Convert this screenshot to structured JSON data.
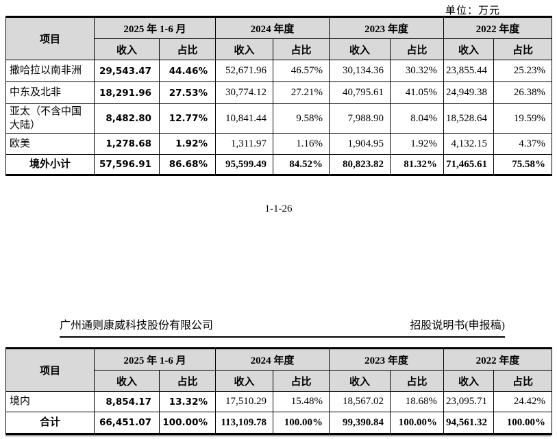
{
  "unit_label": "单位：万元",
  "page_number": "1-1-26",
  "page_header": {
    "company": "广州通则康威科技股份有限公司",
    "doc_title": "招股说明书(申报稿)"
  },
  "column_header": {
    "item": "项目",
    "periods": [
      "2025 年 1-6 月",
      "2024 年度",
      "2023 年度",
      "2022 年度"
    ],
    "sub_revenue": "收入",
    "sub_share": "占比"
  },
  "table_overseas": {
    "rows": [
      {
        "label": "撒哈拉以南非洲",
        "is_total": false,
        "values": [
          "29,543.47",
          "44.46%",
          "52,671.96",
          "46.57%",
          "30,134.36",
          "30.32%",
          "23,855.44",
          "25.23%"
        ]
      },
      {
        "label": "中东及北非",
        "is_total": false,
        "values": [
          "18,291.96",
          "27.53%",
          "30,774.12",
          "27.21%",
          "40,795.61",
          "41.05%",
          "24,949.38",
          "26.38%"
        ]
      },
      {
        "label": "亚太（不含中国大陆）",
        "is_total": false,
        "values": [
          "8,482.80",
          "12.77%",
          "10,841.44",
          "9.58%",
          "7,988.90",
          "8.04%",
          "18,528.64",
          "19.59%"
        ]
      },
      {
        "label": "欧美",
        "is_total": false,
        "values": [
          "1,278.68",
          "1.92%",
          "1,311.97",
          "1.16%",
          "1,904.95",
          "1.92%",
          "4,132.15",
          "4.37%"
        ]
      },
      {
        "label": "境外小计",
        "is_total": true,
        "values": [
          "57,596.91",
          "86.68%",
          "95,599.49",
          "84.52%",
          "80,823.82",
          "81.32%",
          "71,465.61",
          "75.58%"
        ]
      }
    ]
  },
  "table_domestic": {
    "rows": [
      {
        "label": "境内",
        "is_total": false,
        "values": [
          "8,854.17",
          "13.32%",
          "17,510.29",
          "15.48%",
          "18,567.02",
          "18.68%",
          "23,095.71",
          "24.42%"
        ]
      },
      {
        "label": "合计",
        "is_total": true,
        "values": [
          "66,451.07",
          "100.00%",
          "113,109.78",
          "100.00%",
          "99,390.84",
          "100.00%",
          "94,561.32",
          "100.00%"
        ]
      }
    ]
  },
  "colors": {
    "header_bg": "#d9d9d9",
    "border": "#000000",
    "page_bg": "#ffffff"
  }
}
